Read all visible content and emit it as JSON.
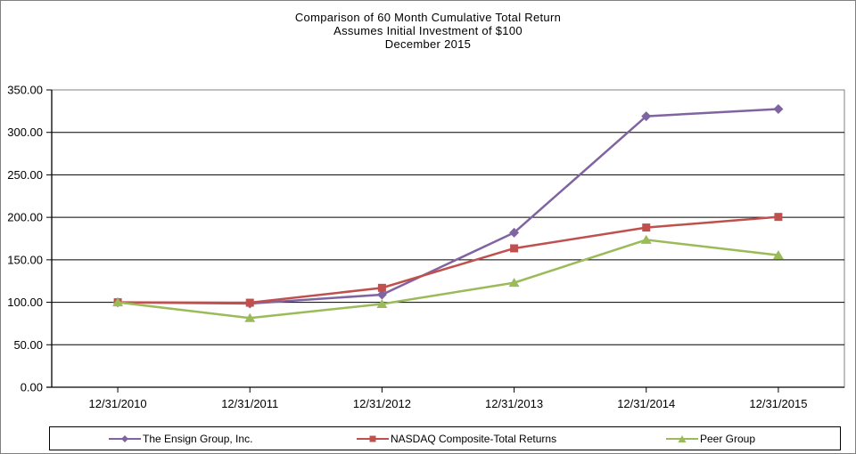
{
  "title": {
    "line1": "Comparison of 60 Month Cumulative Total Return",
    "line2": "Assumes Initial Investment of $100",
    "line3": "December 2015"
  },
  "chart_data": {
    "type": "line",
    "title": "Comparison of 60 Month Cumulative Total Return",
    "subtitle1": "Assumes Initial Investment of $100",
    "subtitle2": "December 2015",
    "categories": [
      "12/31/2010",
      "12/31/2011",
      "12/31/2012",
      "12/31/2013",
      "12/31/2014",
      "12/31/2015"
    ],
    "series": [
      {
        "name": "The Ensign Group, Inc.",
        "marker": "diamond",
        "color": "#8064A2",
        "values": [
          100.0,
          98.5,
          109.0,
          182.0,
          319.0,
          327.5
        ]
      },
      {
        "name": "NASDAQ Composite-Total Returns",
        "marker": "square",
        "color": "#C0504D",
        "values": [
          100.0,
          99.5,
          117.0,
          163.5,
          188.0,
          200.5
        ]
      },
      {
        "name": "Peer Group",
        "marker": "triangle",
        "color": "#9BBB59",
        "values": [
          100.0,
          81.5,
          98.0,
          123.0,
          173.5,
          155.5
        ]
      }
    ],
    "ylim": [
      0,
      350
    ],
    "yticks": [
      "0.00",
      "50.00",
      "100.00",
      "150.00",
      "200.00",
      "250.00",
      "300.00",
      "350.00"
    ],
    "xlabel": "",
    "ylabel": "",
    "grid": "horizontal",
    "legend_position": "bottom",
    "axis_color": "#000000",
    "gridline_color": "#000000",
    "plot_border_color": "#808080",
    "figure_border_color": "#808080",
    "legend_border_color": "#000000"
  }
}
